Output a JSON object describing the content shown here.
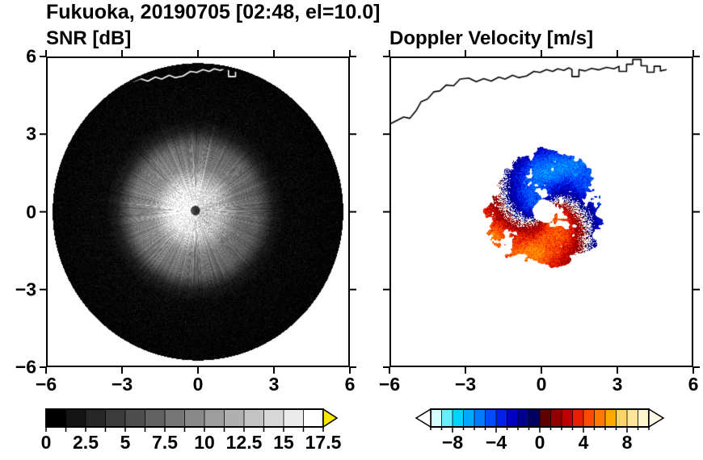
{
  "title": "Fukuoka, 20190705 [02:48, el=10.0]",
  "panels": [
    {
      "label": "SNR [dB]",
      "x_tick_labels": [
        "−6",
        "−3",
        "0",
        "3",
        "6"
      ],
      "y_tick_labels": [
        "−6",
        "−3",
        "0",
        "3",
        "6"
      ]
    },
    {
      "label": "Doppler Velocity [m/s]",
      "x_tick_labels": [
        "−6",
        "−3",
        "0",
        "3",
        "6"
      ],
      "y_tick_labels": []
    }
  ],
  "coastline_points": [
    [
      -6.0,
      3.45
    ],
    [
      -5.5,
      3.7
    ],
    [
      -5.25,
      3.65
    ],
    [
      -5.0,
      3.95
    ],
    [
      -4.8,
      4.3
    ],
    [
      -4.55,
      4.4
    ],
    [
      -4.3,
      4.68
    ],
    [
      -4.05,
      4.72
    ],
    [
      -3.8,
      4.95
    ],
    [
      -3.5,
      4.92
    ],
    [
      -3.25,
      5.18
    ],
    [
      -2.9,
      5.22
    ],
    [
      -2.6,
      5.08
    ],
    [
      -2.3,
      5.2
    ],
    [
      -2.0,
      5.1
    ],
    [
      -1.7,
      5.26
    ],
    [
      -1.45,
      5.18
    ],
    [
      -1.15,
      5.33
    ],
    [
      -0.9,
      5.24
    ],
    [
      -0.6,
      5.3
    ],
    [
      -0.3,
      5.48
    ],
    [
      -0.05,
      5.44
    ],
    [
      0.2,
      5.55
    ],
    [
      0.45,
      5.48
    ],
    [
      0.65,
      5.58
    ],
    [
      0.9,
      5.52
    ],
    [
      1.1,
      5.62
    ],
    [
      1.22,
      5.55
    ],
    [
      1.22,
      5.28
    ],
    [
      1.5,
      5.28
    ],
    [
      1.5,
      5.55
    ],
    [
      1.75,
      5.5
    ],
    [
      2.0,
      5.6
    ],
    [
      2.3,
      5.54
    ],
    [
      2.6,
      5.64
    ],
    [
      2.9,
      5.58
    ],
    [
      3.1,
      5.68
    ],
    [
      3.1,
      5.48
    ],
    [
      3.4,
      5.48
    ],
    [
      3.4,
      5.76
    ],
    [
      3.65,
      5.76
    ],
    [
      3.65,
      5.95
    ],
    [
      3.98,
      5.95
    ],
    [
      3.98,
      5.7
    ],
    [
      4.22,
      5.7
    ],
    [
      4.22,
      5.45
    ],
    [
      4.5,
      5.45
    ],
    [
      4.5,
      5.68
    ],
    [
      4.75,
      5.68
    ],
    [
      4.75,
      5.5
    ],
    [
      5.0,
      5.55
    ]
  ],
  "chart_data": [
    {
      "type": "heatmap",
      "title": "SNR [dB]",
      "xlim": [
        -6,
        6
      ],
      "ylim": [
        -6,
        6
      ],
      "xticks": [
        -6,
        -3,
        0,
        3,
        6
      ],
      "yticks": [
        -6,
        -3,
        0,
        3,
        6
      ],
      "grid": false,
      "colorbar": {
        "range": [
          0,
          17.5
        ],
        "tick_step": 1.25,
        "label_values": [
          "0",
          "2.5",
          "5",
          "7.5",
          "10",
          "12.5",
          "15",
          "17.5"
        ],
        "label_positions": [
          0,
          2.5,
          5,
          7.5,
          10,
          12.5,
          15,
          17.5
        ],
        "segment_colors": [
          "#000000",
          "#141414",
          "#272727",
          "#3b3b3b",
          "#4e4e4e",
          "#626262",
          "#767676",
          "#898989",
          "#9d9d9d",
          "#b0b0b0",
          "#c4c4c4",
          "#d8d8d8",
          "#ebebeb",
          "#ffffff"
        ],
        "overflow_arrow_color": "#ffe800"
      },
      "scan": {
        "disk_center": [
          0,
          0
        ],
        "disk_radius": 5.8,
        "disk_color": "#000000",
        "echo_center": [
          -0.1,
          0.05
        ],
        "radial_profile_r_db": [
          [
            0,
            3.5
          ],
          [
            0.17,
            3.5
          ],
          [
            0.2,
            16.2
          ],
          [
            0.9,
            15.2
          ],
          [
            1.15,
            13.5
          ],
          [
            1.7,
            9.0
          ],
          [
            2.5,
            7.0
          ],
          [
            3.1,
            2.0
          ],
          [
            3.6,
            0.6
          ],
          [
            5.8,
            0.15
          ]
        ],
        "spoke_contrast": 0.28,
        "bright_spoke_threshold": 0.88,
        "pixel_noise_db": 1.8,
        "azimuth_asymmetry": {
          "az_deg": 180,
          "amount": 0.12
        },
        "seed": 11
      },
      "coastline_color": "#ffffff"
    },
    {
      "type": "heatmap",
      "title": "Doppler Velocity [m/s]",
      "xlim": [
        -6,
        6
      ],
      "ylim": [
        -6,
        6
      ],
      "xticks": [
        -6,
        -3,
        0,
        3,
        6
      ],
      "yticks": [
        -6,
        -3,
        0,
        3,
        6
      ],
      "grid": false,
      "colorbar": {
        "range": [
          -10,
          10
        ],
        "tick_step": 1,
        "major_tick_step": 4,
        "label_values": [
          "−8",
          "−4",
          "0",
          "4",
          "8"
        ],
        "label_positions": [
          -8,
          -4,
          0,
          4,
          8
        ],
        "segment_colors": [
          "#d5ffff",
          "#66eeff",
          "#00d4ff",
          "#00a8ff",
          "#007bff",
          "#004dff",
          "#001fe8",
          "#0000c0",
          "#000090",
          "#000060",
          "#600000",
          "#900000",
          "#c00000",
          "#e81f00",
          "#ff4d00",
          "#ff7b00",
          "#ffa800",
          "#ffd466",
          "#ffe699",
          "#fff5cc"
        ],
        "underflow_arrow_color": "#ffffff",
        "overflow_arrow_color": "#fffbe8"
      },
      "field": {
        "center": [
          0.12,
          0.02
        ],
        "hole_radius": 0.28,
        "envelope_r_weight": [
          [
            0.28,
            0
          ],
          [
            0.5,
            0.8
          ],
          [
            0.85,
            1
          ],
          [
            1.9,
            1
          ],
          [
            2.3,
            0.6
          ],
          [
            2.6,
            0.25
          ],
          [
            2.95,
            0
          ]
        ],
        "coverage_threshold": 0.34,
        "min_abs_velocity": 0.7,
        "north_band": {
          "az_center_deg": 85,
          "az_sigma_deg": 55,
          "extra_weight": 0.45,
          "min_radius": 1.3
        },
        "vortex": {
          "phase_deg_at_ref": 135,
          "ref_radius": 2.3,
          "twist_deg_per_unit": 50,
          "base_amplitude": 3.4,
          "amplitude_noise": 3.2,
          "pixel_noise": 2.4
        },
        "seed": 29
      },
      "coastline_color": "#000000"
    }
  ]
}
